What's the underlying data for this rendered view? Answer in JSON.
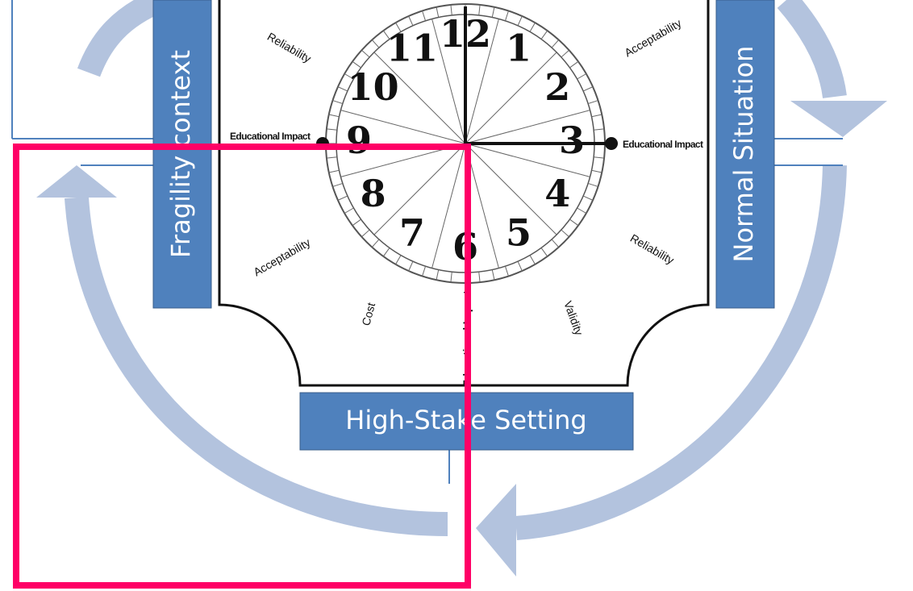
{
  "side_labels": {
    "left": "Fragility context",
    "right": "Normal Situation",
    "bottom": "High-Stake Setting"
  },
  "clock": {
    "numbers": [
      "12",
      "1",
      "2",
      "3",
      "4",
      "5",
      "6",
      "7",
      "8",
      "9",
      "10",
      "11"
    ]
  },
  "criteria": [
    {
      "label": "Reliability"
    },
    {
      "label": "Acceptability"
    },
    {
      "label": "Educational Impact"
    },
    {
      "label": "Educational Impact"
    },
    {
      "label": "Acceptability"
    },
    {
      "label": "Reliability"
    },
    {
      "label": "Cost"
    },
    {
      "label": "Educational Impact"
    },
    {
      "label": "Validity"
    }
  ]
}
